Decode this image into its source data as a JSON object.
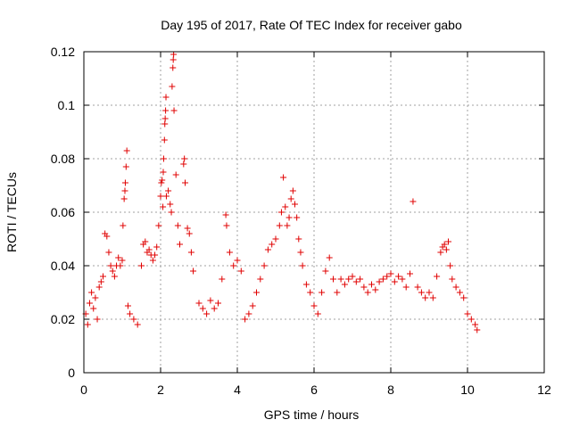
{
  "chart_data": {
    "type": "scatter",
    "title": "Day 195 of 2017, Rate Of TEC Index for receiver gabo",
    "xlabel": "GPS time / hours",
    "ylabel": "ROTI / TECUs",
    "xlim": [
      0,
      12
    ],
    "ylim": [
      0,
      0.12
    ],
    "xticks": [
      0,
      2,
      4,
      6,
      8,
      10,
      12
    ],
    "xtick_labels": [
      "0",
      "2",
      "4",
      "6",
      "8",
      "10",
      "12"
    ],
    "yticks": [
      0,
      0.02,
      0.04,
      0.06,
      0.08,
      0.1,
      0.12
    ],
    "ytick_labels": [
      "0",
      "0.02",
      "0.04",
      "0.06",
      "0.08",
      "0.1",
      "0.12"
    ],
    "grid": true,
    "marker": "plus",
    "marker_color": "#e00000",
    "series": [
      {
        "name": "ROTI",
        "points": [
          [
            0.05,
            0.022
          ],
          [
            0.1,
            0.018
          ],
          [
            0.15,
            0.026
          ],
          [
            0.2,
            0.03
          ],
          [
            0.25,
            0.024
          ],
          [
            0.3,
            0.028
          ],
          [
            0.35,
            0.02
          ],
          [
            0.4,
            0.032
          ],
          [
            0.45,
            0.034
          ],
          [
            0.5,
            0.036
          ],
          [
            0.55,
            0.052
          ],
          [
            0.6,
            0.051
          ],
          [
            0.65,
            0.045
          ],
          [
            0.7,
            0.04
          ],
          [
            0.75,
            0.038
          ],
          [
            0.8,
            0.036
          ],
          [
            0.85,
            0.04
          ],
          [
            0.9,
            0.043
          ],
          [
            0.95,
            0.04
          ],
          [
            1.0,
            0.042
          ],
          [
            1.02,
            0.055
          ],
          [
            1.05,
            0.065
          ],
          [
            1.07,
            0.068
          ],
          [
            1.08,
            0.071
          ],
          [
            1.1,
            0.077
          ],
          [
            1.12,
            0.083
          ],
          [
            1.15,
            0.025
          ],
          [
            1.2,
            0.022
          ],
          [
            1.3,
            0.02
          ],
          [
            1.4,
            0.018
          ],
          [
            1.5,
            0.04
          ],
          [
            1.55,
            0.048
          ],
          [
            1.6,
            0.049
          ],
          [
            1.65,
            0.045
          ],
          [
            1.7,
            0.046
          ],
          [
            1.75,
            0.044
          ],
          [
            1.8,
            0.042
          ],
          [
            1.85,
            0.044
          ],
          [
            1.9,
            0.047
          ],
          [
            1.95,
            0.055
          ],
          [
            2.0,
            0.066
          ],
          [
            2.02,
            0.071
          ],
          [
            2.04,
            0.072
          ],
          [
            2.06,
            0.062
          ],
          [
            2.07,
            0.075
          ],
          [
            2.08,
            0.08
          ],
          [
            2.1,
            0.087
          ],
          [
            2.11,
            0.093
          ],
          [
            2.12,
            0.095
          ],
          [
            2.13,
            0.098
          ],
          [
            2.14,
            0.103
          ],
          [
            2.15,
            0.066
          ],
          [
            2.2,
            0.068
          ],
          [
            2.25,
            0.063
          ],
          [
            2.28,
            0.06
          ],
          [
            2.3,
            0.107
          ],
          [
            2.32,
            0.114
          ],
          [
            2.33,
            0.117
          ],
          [
            2.34,
            0.119
          ],
          [
            2.35,
            0.098
          ],
          [
            2.4,
            0.074
          ],
          [
            2.45,
            0.055
          ],
          [
            2.5,
            0.048
          ],
          [
            2.6,
            0.078
          ],
          [
            2.62,
            0.08
          ],
          [
            2.64,
            0.071
          ],
          [
            2.7,
            0.054
          ],
          [
            2.75,
            0.052
          ],
          [
            2.8,
            0.045
          ],
          [
            2.85,
            0.038
          ],
          [
            3.0,
            0.026
          ],
          [
            3.1,
            0.024
          ],
          [
            3.2,
            0.022
          ],
          [
            3.3,
            0.027
          ],
          [
            3.4,
            0.024
          ],
          [
            3.5,
            0.026
          ],
          [
            3.6,
            0.035
          ],
          [
            3.7,
            0.059
          ],
          [
            3.72,
            0.055
          ],
          [
            3.8,
            0.045
          ],
          [
            3.9,
            0.04
          ],
          [
            4.0,
            0.042
          ],
          [
            4.1,
            0.038
          ],
          [
            4.2,
            0.02
          ],
          [
            4.3,
            0.022
          ],
          [
            4.4,
            0.025
          ],
          [
            4.5,
            0.03
          ],
          [
            4.6,
            0.035
          ],
          [
            4.7,
            0.04
          ],
          [
            4.8,
            0.046
          ],
          [
            4.9,
            0.048
          ],
          [
            5.0,
            0.05
          ],
          [
            5.1,
            0.055
          ],
          [
            5.15,
            0.06
          ],
          [
            5.2,
            0.073
          ],
          [
            5.25,
            0.062
          ],
          [
            5.3,
            0.055
          ],
          [
            5.35,
            0.058
          ],
          [
            5.4,
            0.065
          ],
          [
            5.45,
            0.068
          ],
          [
            5.5,
            0.063
          ],
          [
            5.55,
            0.058
          ],
          [
            5.6,
            0.05
          ],
          [
            5.65,
            0.045
          ],
          [
            5.7,
            0.04
          ],
          [
            5.8,
            0.033
          ],
          [
            5.9,
            0.03
          ],
          [
            6.0,
            0.025
          ],
          [
            6.1,
            0.022
          ],
          [
            6.2,
            0.03
          ],
          [
            6.3,
            0.038
          ],
          [
            6.4,
            0.043
          ],
          [
            6.5,
            0.035
          ],
          [
            6.6,
            0.03
          ],
          [
            6.7,
            0.035
          ],
          [
            6.8,
            0.033
          ],
          [
            6.9,
            0.035
          ],
          [
            7.0,
            0.036
          ],
          [
            7.1,
            0.034
          ],
          [
            7.2,
            0.035
          ],
          [
            7.3,
            0.032
          ],
          [
            7.4,
            0.03
          ],
          [
            7.5,
            0.033
          ],
          [
            7.6,
            0.031
          ],
          [
            7.7,
            0.034
          ],
          [
            7.8,
            0.035
          ],
          [
            7.9,
            0.036
          ],
          [
            8.0,
            0.037
          ],
          [
            8.1,
            0.034
          ],
          [
            8.2,
            0.036
          ],
          [
            8.3,
            0.035
          ],
          [
            8.4,
            0.032
          ],
          [
            8.5,
            0.037
          ],
          [
            8.58,
            0.064
          ],
          [
            8.7,
            0.032
          ],
          [
            8.8,
            0.03
          ],
          [
            8.9,
            0.028
          ],
          [
            9.0,
            0.03
          ],
          [
            9.1,
            0.028
          ],
          [
            9.2,
            0.036
          ],
          [
            9.3,
            0.045
          ],
          [
            9.35,
            0.047
          ],
          [
            9.4,
            0.048
          ],
          [
            9.45,
            0.046
          ],
          [
            9.5,
            0.049
          ],
          [
            9.55,
            0.04
          ],
          [
            9.6,
            0.035
          ],
          [
            9.7,
            0.032
          ],
          [
            9.8,
            0.03
          ],
          [
            9.9,
            0.028
          ],
          [
            10.0,
            0.022
          ],
          [
            10.1,
            0.02
          ],
          [
            10.2,
            0.018
          ],
          [
            10.25,
            0.016
          ]
        ]
      }
    ]
  }
}
